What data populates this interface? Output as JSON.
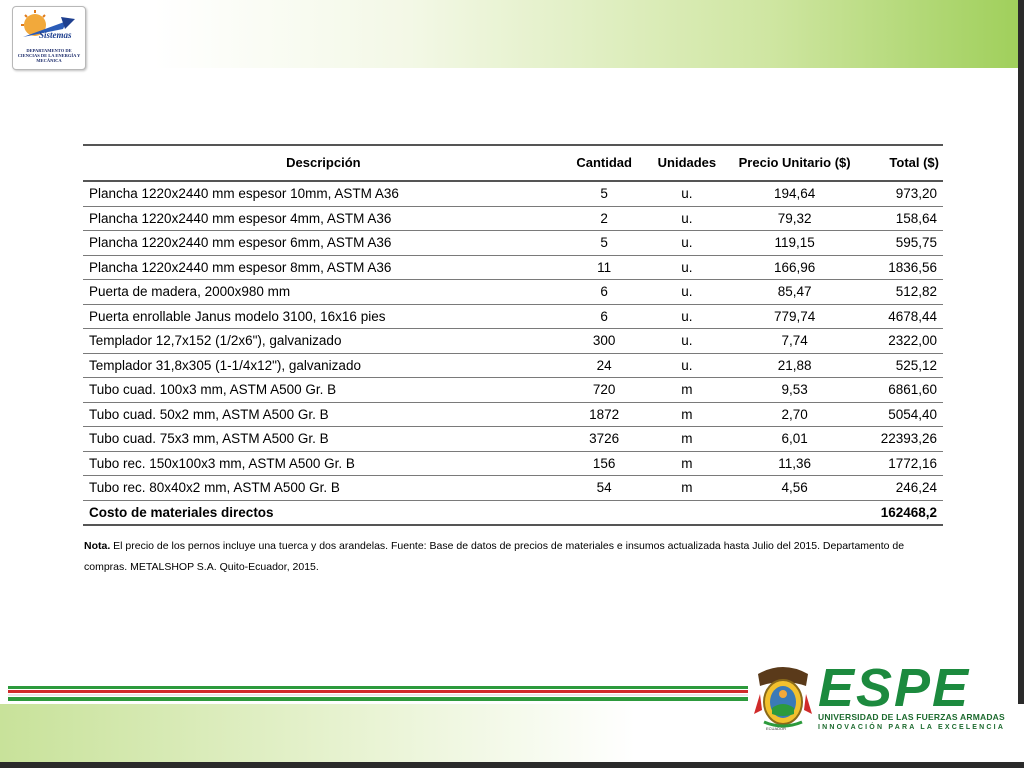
{
  "dept_logo": {
    "name": "dept-logo",
    "wordmark": "Sistemas",
    "caption": "DEPARTAMENTO DE CIENCIAS DE LA ENERGÍA Y MECÁNICA"
  },
  "table": {
    "headers": {
      "description": "Descripción",
      "quantity": "Cantidad",
      "units": "Unidades",
      "unit_price": "Precio Unitario ($)",
      "total": "Total ($)"
    },
    "rows": [
      {
        "description": "Plancha 1220x2440 mm espesor 10mm, ASTM A36",
        "quantity": "5",
        "units": "u.",
        "unit_price": "194,64",
        "total": "973,20"
      },
      {
        "description": "Plancha 1220x2440 mm espesor 4mm, ASTM A36",
        "quantity": "2",
        "units": "u.",
        "unit_price": "79,32",
        "total": "158,64"
      },
      {
        "description": "Plancha 1220x2440 mm espesor 6mm, ASTM A36",
        "quantity": "5",
        "units": "u.",
        "unit_price": "119,15",
        "total": "595,75"
      },
      {
        "description": "Plancha 1220x2440 mm espesor 8mm, ASTM A36",
        "quantity": "11",
        "units": "u.",
        "unit_price": "166,96",
        "total": "1836,56"
      },
      {
        "description": "Puerta de madera, 2000x980 mm",
        "quantity": "6",
        "units": "u.",
        "unit_price": "85,47",
        "total": "512,82"
      },
      {
        "description": "Puerta enrollable Janus modelo 3100, 16x16 pies",
        "quantity": "6",
        "units": "u.",
        "unit_price": "779,74",
        "total": "4678,44"
      },
      {
        "description": "Templador 12,7x152 (1/2x6\"), galvanizado",
        "quantity": "300",
        "units": "u.",
        "unit_price": "7,74",
        "total": "2322,00"
      },
      {
        "description": "Templador 31,8x305 (1-1/4x12\"), galvanizado",
        "quantity": "24",
        "units": "u.",
        "unit_price": "21,88",
        "total": "525,12"
      },
      {
        "description": "Tubo cuad. 100x3 mm, ASTM A500 Gr. B",
        "quantity": "720",
        "units": "m",
        "unit_price": "9,53",
        "total": "6861,60"
      },
      {
        "description": "Tubo cuad. 50x2 mm, ASTM A500 Gr. B",
        "quantity": "1872",
        "units": "m",
        "unit_price": "2,70",
        "total": "5054,40"
      },
      {
        "description": "Tubo cuad. 75x3 mm, ASTM A500 Gr. B",
        "quantity": "3726",
        "units": "m",
        "unit_price": "6,01",
        "total": "22393,26"
      },
      {
        "description": "Tubo rec. 150x100x3 mm, ASTM A500 Gr. B",
        "quantity": "156",
        "units": "m",
        "unit_price": "11,36",
        "total": "1772,16"
      },
      {
        "description": "Tubo rec. 80x40x2 mm, ASTM A500 Gr. B",
        "quantity": "54",
        "units": "m",
        "unit_price": "4,56",
        "total": "246,24"
      }
    ],
    "total_row": {
      "label": "Costo de materiales directos",
      "value": "162468,2"
    }
  },
  "note": {
    "label": "Nota.",
    "text": " El precio de los pernos incluye una tuerca y dos arandelas. Fuente: Base de datos de precios de materiales e insumos actualizada hasta Julio del 2015. Departamento de compras. METALSHOP S.A. Quito-Ecuador, 2015."
  },
  "espe": {
    "wordmark": "ESPE",
    "subtitle": "UNIVERSIDAD DE LAS FUERZAS ARMADAS",
    "tagline": "INNOVACIÓN PARA LA EXCELENCIA",
    "crest_label": "ECUADOR"
  },
  "colors": {
    "espe_green": "#1c8a3e",
    "stripe_red": "#d02a2a",
    "stripe_green": "#2c9a3c",
    "band_green": "#9fcf5a"
  }
}
